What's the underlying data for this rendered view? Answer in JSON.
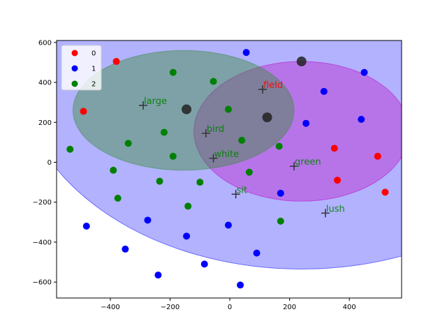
{
  "chart_data": {
    "type": "scatter",
    "xlim": [
      -580,
      575
    ],
    "ylim": [
      -680,
      610
    ],
    "xticks": [
      -400,
      -200,
      0,
      200,
      400
    ],
    "yticks": [
      -600,
      -400,
      -200,
      0,
      200,
      400,
      600
    ],
    "xtick_labels": [
      "−400",
      "−200",
      "0",
      "200",
      "400"
    ],
    "ytick_labels": [
      "−600",
      "−400",
      "−200",
      "0",
      "200",
      "400",
      "600"
    ],
    "grid": false,
    "legend": {
      "placement": "top-left",
      "entries": [
        {
          "label": "0",
          "color": "#ff0000"
        },
        {
          "label": "1",
          "color": "#0000ff"
        },
        {
          "label": "2",
          "color": "#008000"
        }
      ]
    },
    "regions": [
      {
        "class": "1",
        "color": "#0000ff",
        "opacity": 0.3,
        "cx": 240,
        "cy": 480,
        "rx": 950,
        "ry": 1015
      },
      {
        "class": "0",
        "color": "#c000c0",
        "opacity": 0.35,
        "cx": 240,
        "cy": 155,
        "rx": 360,
        "ry": 350
      },
      {
        "class": "2",
        "color": "#3c8c3c",
        "opacity": 0.45,
        "cx": -155,
        "cy": 260,
        "rx": 370,
        "ry": 300
      }
    ],
    "series": [
      {
        "name": "0",
        "color": "#ff0000",
        "points": [
          [
            -380,
            505
          ],
          [
            -490,
            255
          ],
          [
            350,
            70
          ],
          [
            495,
            30
          ],
          [
            520,
            -150
          ],
          [
            360,
            -90
          ]
        ]
      },
      {
        "name": "1",
        "color": "#0000ff",
        "points": [
          [
            -480,
            -320
          ],
          [
            -350,
            -435
          ],
          [
            -240,
            -565
          ],
          [
            -275,
            -290
          ],
          [
            -145,
            -370
          ],
          [
            -85,
            -510
          ],
          [
            -5,
            -315
          ],
          [
            35,
            -615
          ],
          [
            90,
            -455
          ],
          [
            55,
            550
          ],
          [
            315,
            355
          ],
          [
            450,
            450
          ],
          [
            440,
            215
          ],
          [
            255,
            195
          ],
          [
            170,
            -155
          ]
        ]
      },
      {
        "name": "2",
        "color": "#008000",
        "points": [
          [
            -535,
            65
          ],
          [
            -390,
            -40
          ],
          [
            -375,
            -180
          ],
          [
            -340,
            95
          ],
          [
            -235,
            -95
          ],
          [
            -220,
            150
          ],
          [
            -190,
            450
          ],
          [
            -190,
            30
          ],
          [
            -140,
            -220
          ],
          [
            -100,
            -100
          ],
          [
            -55,
            405
          ],
          [
            -5,
            265
          ],
          [
            40,
            110
          ],
          [
            65,
            -50
          ],
          [
            165,
            80
          ],
          [
            170,
            -295
          ]
        ]
      }
    ],
    "centers": [
      {
        "name": "0",
        "x": 125,
        "y": 225
      },
      {
        "name": "1",
        "x": 240,
        "y": 505
      },
      {
        "name": "2",
        "x": -145,
        "y": 265
      }
    ],
    "words": [
      {
        "text": "field",
        "x": 110,
        "y": 365,
        "color": "#ff0000"
      },
      {
        "text": "large",
        "x": -290,
        "y": 285,
        "color": "#008000"
      },
      {
        "text": "bird",
        "x": -80,
        "y": 145,
        "color": "#008000"
      },
      {
        "text": "white",
        "x": -55,
        "y": 20,
        "color": "#008000"
      },
      {
        "text": "green",
        "x": 215,
        "y": -20,
        "color": "#008000"
      },
      {
        "text": "sit",
        "x": 20,
        "y": -160,
        "color": "#008000"
      },
      {
        "text": "lush",
        "x": 320,
        "y": -255,
        "color": "#008000"
      }
    ]
  }
}
